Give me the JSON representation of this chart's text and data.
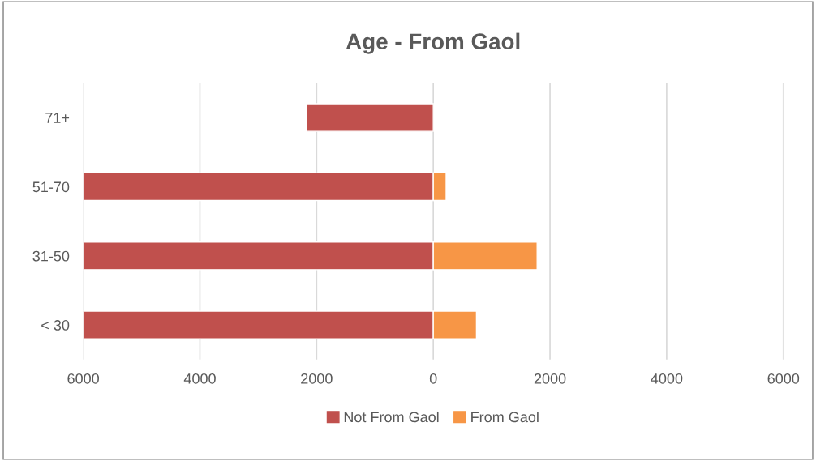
{
  "chart_data": {
    "type": "bar",
    "title": "Age - From Gaol",
    "orientation": "horizontal",
    "stacked": true,
    "categories": [
      "71+",
      "51-70",
      "31-50",
      "< 30"
    ],
    "series": [
      {
        "name": "Not From Gaol",
        "color": "#c0504d",
        "values": [
          -2170,
          -6000,
          -6000,
          -6000
        ]
      },
      {
        "name": "From Gaol",
        "color": "#f79646",
        "values": [
          null,
          220,
          1780,
          740
        ]
      }
    ],
    "xlim": [
      -6000,
      6000
    ],
    "xticks": [
      {
        "value": -6000,
        "label": "6000"
      },
      {
        "value": -4000,
        "label": "4000"
      },
      {
        "value": -2000,
        "label": "2000"
      },
      0,
      2000,
      4000,
      6000
    ],
    "grid": "x",
    "legend": "bottom"
  }
}
